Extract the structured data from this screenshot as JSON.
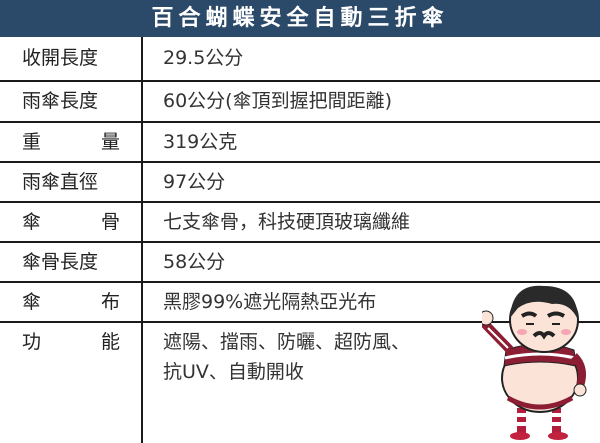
{
  "title": "百合蝴蝶安全自動三折傘",
  "rows": [
    {
      "label": "收開長度",
      "value": "29.5公分"
    },
    {
      "label": "雨傘長度",
      "value": "60公分(傘頂到握把間距離)"
    },
    {
      "label": "重　量",
      "value": "319公克"
    },
    {
      "label": "雨傘直徑",
      "value": "97公分"
    },
    {
      "label": "傘　骨",
      "value": "七支傘骨，科技硬頂玻璃纖維"
    },
    {
      "label": "傘骨長度",
      "value": "58公分"
    },
    {
      "label": "傘　布",
      "value": "黑膠99%遮光隔熱亞光布"
    },
    {
      "label": "功　能",
      "value": "遮陽、擋雨、防曬、超防風、",
      "value2": "抗UV、自動開收"
    }
  ],
  "colors": {
    "header": "#2b4968"
  }
}
